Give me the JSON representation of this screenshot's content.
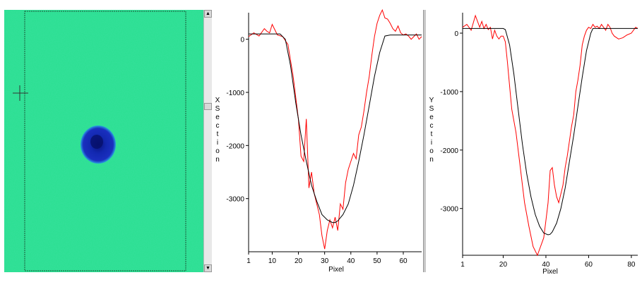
{
  "image_panel": {
    "background_color": "#27e08e",
    "spot_color": "#1a2fbf",
    "spot_core_color": "#08127a"
  },
  "chart_data": [
    {
      "type": "line",
      "vertical_label": "X Section",
      "xlabel": "Pixel",
      "xlim": [
        1,
        67
      ],
      "ylim": [
        -4000,
        500
      ],
      "x_ticks": [
        1,
        10,
        20,
        30,
        40,
        50,
        60
      ],
      "y_ticks": [
        0,
        -1000,
        -2000,
        -3000
      ],
      "series": [
        {
          "color": "#ff0000",
          "x": [
            1,
            3,
            5,
            7,
            8,
            9,
            10,
            11,
            12,
            14,
            16,
            18,
            19,
            20,
            21,
            22,
            23,
            24,
            25,
            26,
            27,
            28,
            29,
            30,
            31,
            32,
            33,
            34,
            35,
            36,
            37,
            38,
            39,
            40,
            41,
            42,
            43,
            44,
            45,
            46,
            47,
            48,
            49,
            50,
            51,
            52,
            53,
            54,
            55,
            56,
            57,
            58,
            59,
            60,
            61,
            62,
            63,
            64,
            65,
            66,
            67
          ],
          "y": [
            50,
            120,
            60,
            200,
            150,
            120,
            280,
            180,
            80,
            50,
            -100,
            -700,
            -1100,
            -1500,
            -2200,
            -2300,
            -1500,
            -2800,
            -2500,
            -2900,
            -3100,
            -3300,
            -3700,
            -3950,
            -3600,
            -3400,
            -3550,
            -3350,
            -3600,
            -3100,
            -3200,
            -2700,
            -2450,
            -2300,
            -2150,
            -2250,
            -1800,
            -1650,
            -1350,
            -1000,
            -700,
            -300,
            50,
            300,
            450,
            550,
            400,
            380,
            300,
            200,
            150,
            250,
            120,
            80,
            100,
            60,
            0,
            50,
            100,
            0,
            50
          ]
        },
        {
          "color": "#000000",
          "x": [
            1,
            5,
            10,
            13,
            15,
            17,
            19,
            21,
            23,
            25,
            27,
            29,
            31,
            33,
            34,
            35,
            37,
            39,
            41,
            43,
            45,
            47,
            49,
            51,
            53,
            55,
            60,
            67
          ],
          "y": [
            100,
            100,
            100,
            100,
            0,
            -500,
            -1200,
            -1800,
            -2300,
            -2750,
            -3050,
            -3300,
            -3400,
            -3450,
            -3450,
            -3420,
            -3300,
            -3100,
            -2750,
            -2300,
            -1800,
            -1250,
            -700,
            -250,
            60,
            80,
            80,
            80
          ]
        }
      ]
    },
    {
      "type": "line",
      "vertical_label": "Y Section",
      "xlabel": "Pixel",
      "xlim": [
        1,
        83
      ],
      "ylim": [
        -3800,
        350
      ],
      "x_ticks": [
        1,
        20,
        40,
        60,
        80
      ],
      "y_ticks": [
        0,
        -1000,
        -2000,
        -3000
      ],
      "series": [
        {
          "color": "#ff0000",
          "x": [
            1,
            3,
            5,
            7,
            9,
            10,
            11,
            12,
            13,
            14,
            15,
            16,
            17,
            18,
            19,
            20,
            21,
            22,
            23,
            24,
            26,
            28,
            30,
            32,
            34,
            36,
            38,
            39,
            40,
            41,
            42,
            43,
            44,
            45,
            46,
            47,
            48,
            49,
            50,
            51,
            52,
            53,
            54,
            55,
            56,
            57,
            58,
            59,
            60,
            61,
            62,
            63,
            64,
            65,
            66,
            67,
            68,
            69,
            70,
            71,
            72,
            74,
            76,
            78,
            80,
            82,
            83
          ],
          "y": [
            100,
            150,
            50,
            300,
            100,
            200,
            80,
            150,
            60,
            100,
            -100,
            50,
            -50,
            -100,
            -50,
            -50,
            -150,
            -500,
            -900,
            -1300,
            -1700,
            -2300,
            -2900,
            -3300,
            -3650,
            -3800,
            -3600,
            -3500,
            -3200,
            -2900,
            -2350,
            -2300,
            -2600,
            -2800,
            -2900,
            -2750,
            -2600,
            -2300,
            -2100,
            -1850,
            -1600,
            -1400,
            -1000,
            -800,
            -550,
            -200,
            -50,
            50,
            100,
            80,
            150,
            100,
            120,
            80,
            150,
            100,
            50,
            150,
            100,
            0,
            -50,
            -100,
            -80,
            -30,
            0,
            100,
            80
          ]
        },
        {
          "color": "#000000",
          "x": [
            1,
            5,
            10,
            15,
            20,
            21,
            23,
            25,
            27,
            29,
            31,
            33,
            35,
            37,
            39,
            41,
            42,
            43,
            45,
            47,
            49,
            51,
            53,
            55,
            57,
            59,
            61,
            62,
            65,
            70,
            75,
            80,
            83
          ],
          "y": [
            80,
            80,
            80,
            80,
            80,
            60,
            -200,
            -700,
            -1300,
            -1900,
            -2400,
            -2800,
            -3100,
            -3300,
            -3420,
            -3450,
            -3440,
            -3400,
            -3250,
            -3000,
            -2650,
            -2200,
            -1750,
            -1250,
            -750,
            -300,
            0,
            80,
            80,
            80,
            80,
            80,
            80
          ]
        }
      ]
    }
  ]
}
